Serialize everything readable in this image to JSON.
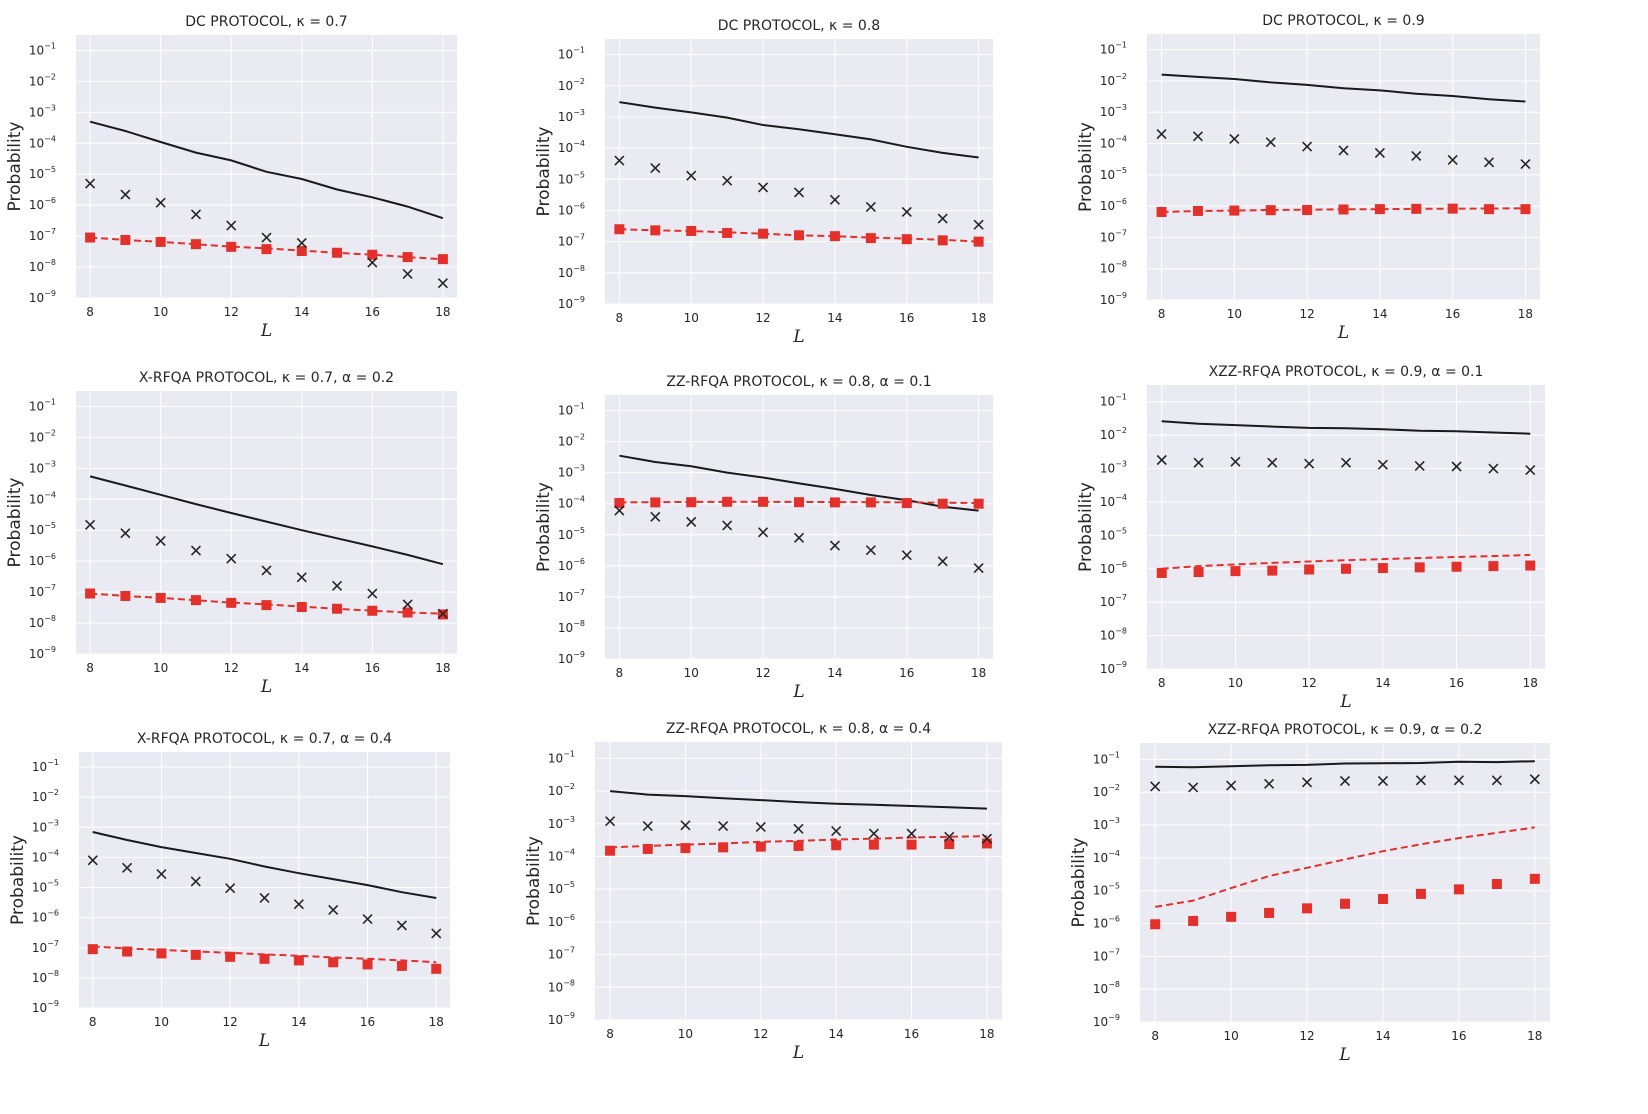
{
  "colors": {
    "background": "#eaeaf2",
    "grid": "#ffffff",
    "exact": "#1a1a1a",
    "markers_x": "#262626",
    "approx": "#e3302b"
  },
  "series_legend": {
    "solid": "black solid line",
    "crosses": "black x markers",
    "dashed": "red dashed line",
    "squares": "red square markers"
  },
  "chart_data": [
    {
      "type": "line",
      "title_prefix": "DC PROTOCOL, ",
      "title_math": "κ = 0.7",
      "xlabel": "L",
      "ylabel": "Probability",
      "x": [
        8,
        9,
        10,
        11,
        12,
        13,
        14,
        15,
        16,
        17,
        18
      ],
      "ylim_exp": [
        -9,
        -0.5
      ],
      "series": [
        {
          "name": "solid",
          "values": [
            0.0005,
            0.00025,
            0.00011,
            5e-05,
            2.8e-05,
            1.2e-05,
            7e-06,
            3.2e-06,
            1.8e-06,
            9e-07,
            3.8e-07
          ]
        },
        {
          "name": "crosses",
          "values": [
            5e-06,
            2.2e-06,
            1.2e-06,
            5e-07,
            2.2e-07,
            9e-08,
            6e-08,
            null,
            1.4e-08,
            6e-09,
            3e-09
          ]
        },
        {
          "name": "dashed",
          "values": [
            9e-08,
            7.5e-08,
            6.5e-08,
            5.5e-08,
            4.6e-08,
            4e-08,
            3.4e-08,
            2.9e-08,
            2.5e-08,
            2.1e-08,
            1.8e-08
          ]
        },
        {
          "name": "squares",
          "values": [
            9e-08,
            7.5e-08,
            6.5e-08,
            5.5e-08,
            4.5e-08,
            3.8e-08,
            3.3e-08,
            2.9e-08,
            2.5e-08,
            2.1e-08,
            1.8e-08
          ]
        }
      ]
    },
    {
      "type": "line",
      "title_prefix": "DC PROTOCOL, ",
      "title_math": "κ = 0.8",
      "xlabel": "L",
      "ylabel": "Probability",
      "x": [
        8,
        9,
        10,
        11,
        12,
        13,
        14,
        15,
        16,
        17,
        18
      ],
      "ylim_exp": [
        -9,
        -0.5
      ],
      "series": [
        {
          "name": "solid",
          "values": [
            0.003,
            0.002,
            0.0014,
            0.00095,
            0.00055,
            0.0004,
            0.00028,
            0.00019,
            0.00011,
            7e-05,
            5e-05
          ]
        },
        {
          "name": "crosses",
          "values": [
            4e-05,
            2.3e-05,
            1.3e-05,
            9e-06,
            5.5e-06,
            3.8e-06,
            2.2e-06,
            1.3e-06,
            9e-07,
            5.5e-07,
            3.5e-07
          ]
        },
        {
          "name": "dashed",
          "values": [
            2.5e-07,
            2.3e-07,
            2.2e-07,
            2e-07,
            1.8e-07,
            1.6e-07,
            1.5e-07,
            1.35e-07,
            1.25e-07,
            1.15e-07,
            1e-07
          ]
        },
        {
          "name": "squares",
          "values": [
            2.5e-07,
            2.3e-07,
            2.2e-07,
            1.9e-07,
            1.8e-07,
            1.6e-07,
            1.5e-07,
            1.3e-07,
            1.2e-07,
            1.1e-07,
            1e-07
          ]
        }
      ]
    },
    {
      "type": "line",
      "title_prefix": "DC PROTOCOL, ",
      "title_math": "κ = 0.9",
      "xlabel": "L",
      "ylabel": "Probability",
      "x": [
        8,
        9,
        10,
        11,
        12,
        13,
        14,
        15,
        16,
        17,
        18
      ],
      "ylim_exp": [
        -9,
        -0.5
      ],
      "series": [
        {
          "name": "solid",
          "values": [
            0.016,
            0.0135,
            0.0115,
            0.009,
            0.0075,
            0.0058,
            0.005,
            0.0039,
            0.0033,
            0.0026,
            0.0022
          ]
        },
        {
          "name": "crosses",
          "values": [
            0.0002,
            0.00017,
            0.00014,
            0.00011,
            8e-05,
            6e-05,
            5e-05,
            4e-05,
            3e-05,
            2.5e-05,
            2.2e-05
          ]
        },
        {
          "name": "dashed",
          "values": [
            6.5e-07,
            7e-07,
            7.2e-07,
            7.5e-07,
            7.7e-07,
            7.9e-07,
            8e-07,
            8.2e-07,
            8.3e-07,
            8.4e-07,
            8.5e-07
          ]
        },
        {
          "name": "squares",
          "values": [
            6.5e-07,
            7e-07,
            7.2e-07,
            7.4e-07,
            7.5e-07,
            7.8e-07,
            8e-07,
            8.2e-07,
            8.3e-07,
            8e-07,
            8e-07
          ]
        }
      ]
    },
    {
      "type": "line",
      "title_prefix": "X-RFQA PROTOCOL, ",
      "title_math": "κ = 0.7, α = 0.2",
      "xlabel": "L",
      "ylabel": "Probability",
      "x": [
        8,
        9,
        10,
        11,
        12,
        13,
        14,
        15,
        16,
        17,
        18
      ],
      "ylim_exp": [
        -9,
        -0.5
      ],
      "series": [
        {
          "name": "solid",
          "values": [
            0.00055,
            0.00028,
            0.00014,
            7e-05,
            3.6e-05,
            1.9e-05,
            1e-05,
            5.5e-06,
            3e-06,
            1.6e-06,
            8e-07
          ]
        },
        {
          "name": "crosses",
          "values": [
            1.5e-05,
            8e-06,
            4.5e-06,
            2.2e-06,
            1.2e-06,
            5e-07,
            3e-07,
            1.6e-07,
            9e-08,
            4e-08,
            2e-08
          ]
        },
        {
          "name": "dashed",
          "values": [
            9e-08,
            7.5e-08,
            6.5e-08,
            5.5e-08,
            4.6e-08,
            4e-08,
            3.4e-08,
            2.9e-08,
            2.5e-08,
            2.2e-08,
            2e-08
          ]
        },
        {
          "name": "squares",
          "values": [
            9e-08,
            7.5e-08,
            6.5e-08,
            5.5e-08,
            4.5e-08,
            3.8e-08,
            3.3e-08,
            2.9e-08,
            2.5e-08,
            2.2e-08,
            1.9e-08
          ]
        }
      ]
    },
    {
      "type": "line",
      "title_prefix": "ZZ-RFQA PROTOCOL, ",
      "title_math": "κ = 0.8, α = 0.1",
      "xlabel": "L",
      "ylabel": "Probability",
      "x": [
        8,
        9,
        10,
        11,
        12,
        13,
        14,
        15,
        16,
        17,
        18
      ],
      "ylim_exp": [
        -9,
        -0.5
      ],
      "series": [
        {
          "name": "solid",
          "values": [
            0.0035,
            0.0022,
            0.0016,
            0.001,
            0.0007,
            0.00045,
            0.0003,
            0.00019,
            0.00013,
            8e-05,
            6e-05
          ]
        },
        {
          "name": "crosses",
          "values": [
            6e-05,
            3.8e-05,
            2.6e-05,
            2e-05,
            1.2e-05,
            8e-06,
            4.5e-06,
            3.2e-06,
            2.2e-06,
            1.4e-06,
            8.5e-07
          ]
        },
        {
          "name": "dashed",
          "values": [
            0.00011,
            0.000112,
            0.000114,
            0.000115,
            0.000115,
            0.000114,
            0.000113,
            0.000112,
            0.00011,
            0.000108,
            0.000105
          ]
        },
        {
          "name": "squares",
          "values": [
            0.000105,
            0.00011,
            0.000112,
            0.000115,
            0.000115,
            0.000112,
            0.00011,
            0.00011,
            0.000105,
            0.0001,
            0.0001
          ]
        }
      ]
    },
    {
      "type": "line",
      "title_prefix": "XZZ-RFQA PROTOCOL, ",
      "title_math": "κ = 0.9, α = 0.1",
      "xlabel": "L",
      "ylabel": "Probability",
      "x": [
        8,
        9,
        10,
        11,
        12,
        13,
        14,
        15,
        16,
        17,
        18
      ],
      "ylim_exp": [
        -9,
        -0.5
      ],
      "series": [
        {
          "name": "solid",
          "values": [
            0.026,
            0.022,
            0.02,
            0.018,
            0.0165,
            0.016,
            0.015,
            0.0135,
            0.013,
            0.012,
            0.011
          ]
        },
        {
          "name": "crosses",
          "values": [
            0.0018,
            0.0015,
            0.0016,
            0.0015,
            0.0014,
            0.0015,
            0.0013,
            0.0012,
            0.00115,
            0.001,
            0.0009
          ]
        },
        {
          "name": "dashed",
          "values": [
            1e-06,
            1.2e-06,
            1.35e-06,
            1.5e-06,
            1.65e-06,
            1.8e-06,
            1.95e-06,
            2.1e-06,
            2.25e-06,
            2.4e-06,
            2.6e-06
          ]
        },
        {
          "name": "squares",
          "values": [
            7.5e-07,
            8e-07,
            8.5e-07,
            8.8e-07,
            9.5e-07,
            1e-06,
            1.05e-06,
            1.1e-06,
            1.15e-06,
            1.2e-06,
            1.25e-06
          ]
        }
      ]
    },
    {
      "type": "line",
      "title_prefix": "X-RFQA PROTOCOL, ",
      "title_math": "κ = 0.7, α = 0.4",
      "xlabel": "L",
      "ylabel": "Probability",
      "x": [
        8,
        9,
        10,
        11,
        12,
        13,
        14,
        15,
        16,
        17,
        18
      ],
      "ylim_exp": [
        -9,
        -0.5
      ],
      "series": [
        {
          "name": "solid",
          "values": [
            0.0007,
            0.00038,
            0.00022,
            0.00014,
            9e-05,
            5e-05,
            3e-05,
            1.9e-05,
            1.2e-05,
            7e-06,
            4.5e-06
          ]
        },
        {
          "name": "crosses",
          "values": [
            8e-05,
            4.5e-05,
            2.8e-05,
            1.6e-05,
            9.5e-06,
            4.5e-06,
            2.8e-06,
            1.8e-06,
            9e-07,
            5.5e-07,
            3e-07
          ]
        },
        {
          "name": "dashed",
          "values": [
            1.1e-07,
            9.5e-08,
            8.5e-08,
            7.5e-08,
            6.8e-08,
            6e-08,
            5.4e-08,
            4.8e-08,
            4.3e-08,
            3.8e-08,
            3.3e-08
          ]
        },
        {
          "name": "squares",
          "values": [
            9e-08,
            7.5e-08,
            6.5e-08,
            5.8e-08,
            5e-08,
            4.3e-08,
            3.8e-08,
            3.3e-08,
            2.8e-08,
            2.5e-08,
            2e-08
          ]
        }
      ]
    },
    {
      "type": "line",
      "title_prefix": "ZZ-RFQA PROTOCOL, ",
      "title_math": "κ = 0.8, α = 0.4",
      "xlabel": "L",
      "ylabel": "Probability",
      "x": [
        8,
        9,
        10,
        11,
        12,
        13,
        14,
        15,
        16,
        17,
        18
      ],
      "ylim_exp": [
        -9,
        -0.5
      ],
      "series": [
        {
          "name": "solid",
          "values": [
            0.01,
            0.0078,
            0.007,
            0.006,
            0.0053,
            0.0046,
            0.0041,
            0.0038,
            0.0035,
            0.0032,
            0.0029
          ]
        },
        {
          "name": "crosses",
          "values": [
            0.0012,
            0.00085,
            0.0009,
            0.00085,
            0.0008,
            0.0007,
            0.0006,
            0.0005,
            0.0005,
            0.0004,
            0.00035
          ]
        },
        {
          "name": "dashed",
          "values": [
            0.00019,
            0.00021,
            0.00023,
            0.00025,
            0.00028,
            0.0003,
            0.00033,
            0.00035,
            0.00038,
            0.0004,
            0.00042
          ]
        },
        {
          "name": "squares",
          "values": [
            0.00015,
            0.00017,
            0.00018,
            0.00019,
            0.0002,
            0.00021,
            0.00022,
            0.00023,
            0.00023,
            0.00024,
            0.00025
          ]
        }
      ]
    },
    {
      "type": "line",
      "title_prefix": "XZZ-RFQA PROTOCOL, ",
      "title_math": "κ = 0.9, α = 0.2",
      "xlabel": "L",
      "ylabel": "Probability",
      "x": [
        8,
        9,
        10,
        11,
        12,
        13,
        14,
        15,
        16,
        17,
        18
      ],
      "ylim_exp": [
        -9,
        -0.5
      ],
      "series": [
        {
          "name": "solid",
          "values": [
            0.06,
            0.058,
            0.062,
            0.066,
            0.068,
            0.075,
            0.076,
            0.078,
            0.085,
            0.083,
            0.088
          ]
        },
        {
          "name": "crosses",
          "values": [
            0.015,
            0.014,
            0.016,
            0.018,
            0.02,
            0.022,
            0.022,
            0.023,
            0.023,
            0.023,
            0.025
          ]
        },
        {
          "name": "dashed",
          "values": [
            3.2e-06,
            5e-06,
            1.2e-05,
            2.8e-05,
            5e-05,
            9e-05,
            0.00016,
            0.00026,
            0.0004,
            0.00058,
            0.00085
          ]
        },
        {
          "name": "squares",
          "values": [
            9.5e-07,
            1.2e-06,
            1.6e-06,
            2.1e-06,
            2.9e-06,
            4e-06,
            5.6e-06,
            8e-06,
            1.1e-05,
            1.6e-05,
            2.3e-05
          ]
        }
      ]
    }
  ]
}
